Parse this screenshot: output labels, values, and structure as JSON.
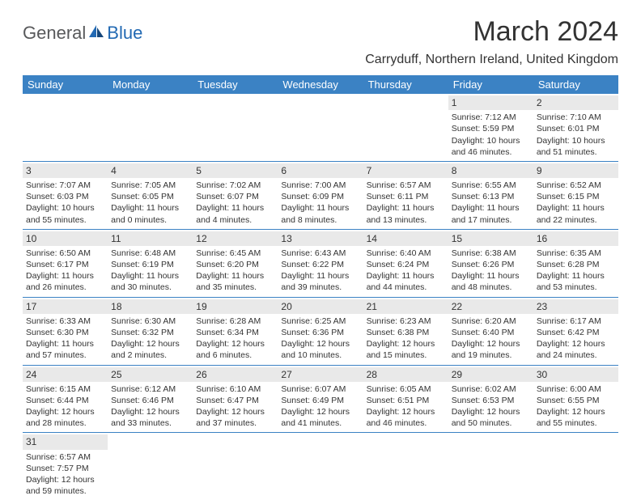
{
  "logo": {
    "general": "General",
    "blue": "Blue"
  },
  "title": "March 2024",
  "location": "Carryduff, Northern Ireland, United Kingdom",
  "colors": {
    "header_bg": "#3b82c4",
    "header_text": "#ffffff",
    "daynum_bg": "#e9e9e9",
    "border": "#3b82c4",
    "logo_gray": "#58595b",
    "logo_blue": "#2269b3"
  },
  "typography": {
    "title_fontsize": 34,
    "location_fontsize": 16,
    "dayheader_fontsize": 13,
    "cell_fontsize": 10.5,
    "daynum_fontsize": 12
  },
  "day_headers": [
    "Sunday",
    "Monday",
    "Tuesday",
    "Wednesday",
    "Thursday",
    "Friday",
    "Saturday"
  ],
  "weeks": [
    [
      {
        "n": "",
        "sr": "",
        "ss": "",
        "dl": ""
      },
      {
        "n": "",
        "sr": "",
        "ss": "",
        "dl": ""
      },
      {
        "n": "",
        "sr": "",
        "ss": "",
        "dl": ""
      },
      {
        "n": "",
        "sr": "",
        "ss": "",
        "dl": ""
      },
      {
        "n": "",
        "sr": "",
        "ss": "",
        "dl": ""
      },
      {
        "n": "1",
        "sr": "Sunrise: 7:12 AM",
        "ss": "Sunset: 5:59 PM",
        "dl": "Daylight: 10 hours and 46 minutes."
      },
      {
        "n": "2",
        "sr": "Sunrise: 7:10 AM",
        "ss": "Sunset: 6:01 PM",
        "dl": "Daylight: 10 hours and 51 minutes."
      }
    ],
    [
      {
        "n": "3",
        "sr": "Sunrise: 7:07 AM",
        "ss": "Sunset: 6:03 PM",
        "dl": "Daylight: 10 hours and 55 minutes."
      },
      {
        "n": "4",
        "sr": "Sunrise: 7:05 AM",
        "ss": "Sunset: 6:05 PM",
        "dl": "Daylight: 11 hours and 0 minutes."
      },
      {
        "n": "5",
        "sr": "Sunrise: 7:02 AM",
        "ss": "Sunset: 6:07 PM",
        "dl": "Daylight: 11 hours and 4 minutes."
      },
      {
        "n": "6",
        "sr": "Sunrise: 7:00 AM",
        "ss": "Sunset: 6:09 PM",
        "dl": "Daylight: 11 hours and 8 minutes."
      },
      {
        "n": "7",
        "sr": "Sunrise: 6:57 AM",
        "ss": "Sunset: 6:11 PM",
        "dl": "Daylight: 11 hours and 13 minutes."
      },
      {
        "n": "8",
        "sr": "Sunrise: 6:55 AM",
        "ss": "Sunset: 6:13 PM",
        "dl": "Daylight: 11 hours and 17 minutes."
      },
      {
        "n": "9",
        "sr": "Sunrise: 6:52 AM",
        "ss": "Sunset: 6:15 PM",
        "dl": "Daylight: 11 hours and 22 minutes."
      }
    ],
    [
      {
        "n": "10",
        "sr": "Sunrise: 6:50 AM",
        "ss": "Sunset: 6:17 PM",
        "dl": "Daylight: 11 hours and 26 minutes."
      },
      {
        "n": "11",
        "sr": "Sunrise: 6:48 AM",
        "ss": "Sunset: 6:19 PM",
        "dl": "Daylight: 11 hours and 30 minutes."
      },
      {
        "n": "12",
        "sr": "Sunrise: 6:45 AM",
        "ss": "Sunset: 6:20 PM",
        "dl": "Daylight: 11 hours and 35 minutes."
      },
      {
        "n": "13",
        "sr": "Sunrise: 6:43 AM",
        "ss": "Sunset: 6:22 PM",
        "dl": "Daylight: 11 hours and 39 minutes."
      },
      {
        "n": "14",
        "sr": "Sunrise: 6:40 AM",
        "ss": "Sunset: 6:24 PM",
        "dl": "Daylight: 11 hours and 44 minutes."
      },
      {
        "n": "15",
        "sr": "Sunrise: 6:38 AM",
        "ss": "Sunset: 6:26 PM",
        "dl": "Daylight: 11 hours and 48 minutes."
      },
      {
        "n": "16",
        "sr": "Sunrise: 6:35 AM",
        "ss": "Sunset: 6:28 PM",
        "dl": "Daylight: 11 hours and 53 minutes."
      }
    ],
    [
      {
        "n": "17",
        "sr": "Sunrise: 6:33 AM",
        "ss": "Sunset: 6:30 PM",
        "dl": "Daylight: 11 hours and 57 minutes."
      },
      {
        "n": "18",
        "sr": "Sunrise: 6:30 AM",
        "ss": "Sunset: 6:32 PM",
        "dl": "Daylight: 12 hours and 2 minutes."
      },
      {
        "n": "19",
        "sr": "Sunrise: 6:28 AM",
        "ss": "Sunset: 6:34 PM",
        "dl": "Daylight: 12 hours and 6 minutes."
      },
      {
        "n": "20",
        "sr": "Sunrise: 6:25 AM",
        "ss": "Sunset: 6:36 PM",
        "dl": "Daylight: 12 hours and 10 minutes."
      },
      {
        "n": "21",
        "sr": "Sunrise: 6:23 AM",
        "ss": "Sunset: 6:38 PM",
        "dl": "Daylight: 12 hours and 15 minutes."
      },
      {
        "n": "22",
        "sr": "Sunrise: 6:20 AM",
        "ss": "Sunset: 6:40 PM",
        "dl": "Daylight: 12 hours and 19 minutes."
      },
      {
        "n": "23",
        "sr": "Sunrise: 6:17 AM",
        "ss": "Sunset: 6:42 PM",
        "dl": "Daylight: 12 hours and 24 minutes."
      }
    ],
    [
      {
        "n": "24",
        "sr": "Sunrise: 6:15 AM",
        "ss": "Sunset: 6:44 PM",
        "dl": "Daylight: 12 hours and 28 minutes."
      },
      {
        "n": "25",
        "sr": "Sunrise: 6:12 AM",
        "ss": "Sunset: 6:46 PM",
        "dl": "Daylight: 12 hours and 33 minutes."
      },
      {
        "n": "26",
        "sr": "Sunrise: 6:10 AM",
        "ss": "Sunset: 6:47 PM",
        "dl": "Daylight: 12 hours and 37 minutes."
      },
      {
        "n": "27",
        "sr": "Sunrise: 6:07 AM",
        "ss": "Sunset: 6:49 PM",
        "dl": "Daylight: 12 hours and 41 minutes."
      },
      {
        "n": "28",
        "sr": "Sunrise: 6:05 AM",
        "ss": "Sunset: 6:51 PM",
        "dl": "Daylight: 12 hours and 46 minutes."
      },
      {
        "n": "29",
        "sr": "Sunrise: 6:02 AM",
        "ss": "Sunset: 6:53 PM",
        "dl": "Daylight: 12 hours and 50 minutes."
      },
      {
        "n": "30",
        "sr": "Sunrise: 6:00 AM",
        "ss": "Sunset: 6:55 PM",
        "dl": "Daylight: 12 hours and 55 minutes."
      }
    ],
    [
      {
        "n": "31",
        "sr": "Sunrise: 6:57 AM",
        "ss": "Sunset: 7:57 PM",
        "dl": "Daylight: 12 hours and 59 minutes."
      },
      {
        "n": "",
        "sr": "",
        "ss": "",
        "dl": ""
      },
      {
        "n": "",
        "sr": "",
        "ss": "",
        "dl": ""
      },
      {
        "n": "",
        "sr": "",
        "ss": "",
        "dl": ""
      },
      {
        "n": "",
        "sr": "",
        "ss": "",
        "dl": ""
      },
      {
        "n": "",
        "sr": "",
        "ss": "",
        "dl": ""
      },
      {
        "n": "",
        "sr": "",
        "ss": "",
        "dl": ""
      }
    ]
  ]
}
